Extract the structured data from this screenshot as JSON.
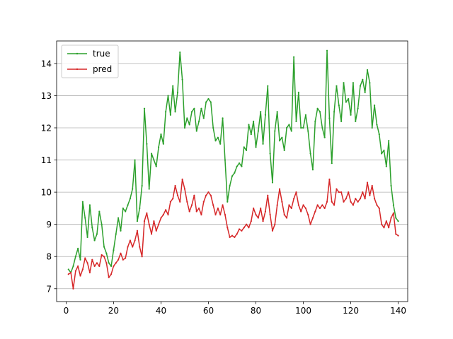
{
  "chart_data": {
    "type": "line",
    "xlim": [
      -4,
      144
    ],
    "ylim": [
      6.6,
      14.7
    ],
    "xticks": [
      0,
      20,
      40,
      60,
      80,
      100,
      120,
      140
    ],
    "yticks": [
      7,
      8,
      9,
      10,
      11,
      12,
      13,
      14
    ],
    "grid": "horizontal",
    "legend": "top-left",
    "series": [
      {
        "name": "true",
        "color": "#2ca02c",
        "points": [
          [
            1,
            7.6
          ],
          [
            2,
            7.5
          ],
          [
            3,
            7.7
          ],
          [
            4,
            8.0
          ],
          [
            5,
            8.25
          ],
          [
            6,
            7.9
          ],
          [
            7,
            9.7
          ],
          [
            8,
            9.2
          ],
          [
            9,
            8.6
          ],
          [
            10,
            9.6
          ],
          [
            11,
            8.9
          ],
          [
            12,
            8.5
          ],
          [
            13,
            8.7
          ],
          [
            14,
            9.4
          ],
          [
            15,
            9.0
          ],
          [
            16,
            8.3
          ],
          [
            17,
            8.1
          ],
          [
            18,
            7.8
          ],
          [
            19,
            7.7
          ],
          [
            20,
            8.2
          ],
          [
            21,
            8.7
          ],
          [
            22,
            9.2
          ],
          [
            23,
            8.8
          ],
          [
            24,
            9.5
          ],
          [
            25,
            9.4
          ],
          [
            26,
            9.6
          ],
          [
            27,
            9.8
          ],
          [
            28,
            10.1
          ],
          [
            29,
            11.0
          ],
          [
            30,
            9.1
          ],
          [
            31,
            9.5
          ],
          [
            32,
            10.2
          ],
          [
            33,
            12.6
          ],
          [
            34,
            11.5
          ],
          [
            35,
            10.1
          ],
          [
            36,
            11.2
          ],
          [
            37,
            11.0
          ],
          [
            38,
            10.8
          ],
          [
            39,
            11.4
          ],
          [
            40,
            11.8
          ],
          [
            41,
            11.5
          ],
          [
            42,
            12.5
          ],
          [
            43,
            13.0
          ],
          [
            44,
            12.4
          ],
          [
            45,
            13.3
          ],
          [
            46,
            12.5
          ],
          [
            47,
            13.1
          ],
          [
            48,
            14.35
          ],
          [
            49,
            13.5
          ],
          [
            50,
            12.0
          ],
          [
            51,
            12.3
          ],
          [
            52,
            12.1
          ],
          [
            53,
            12.5
          ],
          [
            54,
            12.6
          ],
          [
            55,
            11.9
          ],
          [
            56,
            12.2
          ],
          [
            57,
            12.6
          ],
          [
            58,
            12.3
          ],
          [
            59,
            12.8
          ],
          [
            60,
            12.9
          ],
          [
            61,
            12.8
          ],
          [
            62,
            12.0
          ],
          [
            63,
            11.6
          ],
          [
            64,
            11.7
          ],
          [
            65,
            11.5
          ],
          [
            66,
            12.3
          ],
          [
            67,
            11.0
          ],
          [
            68,
            9.7
          ],
          [
            69,
            10.2
          ],
          [
            70,
            10.5
          ],
          [
            71,
            10.6
          ],
          [
            72,
            10.8
          ],
          [
            73,
            10.9
          ],
          [
            74,
            10.8
          ],
          [
            75,
            11.4
          ],
          [
            76,
            11.3
          ],
          [
            77,
            12.1
          ],
          [
            78,
            11.8
          ],
          [
            79,
            12.2
          ],
          [
            80,
            11.4
          ],
          [
            81,
            11.9
          ],
          [
            82,
            12.5
          ],
          [
            83,
            11.5
          ],
          [
            84,
            12.4
          ],
          [
            85,
            13.3
          ],
          [
            86,
            11.2
          ],
          [
            87,
            10.3
          ],
          [
            88,
            11.9
          ],
          [
            89,
            12.5
          ],
          [
            90,
            11.6
          ],
          [
            91,
            11.7
          ],
          [
            92,
            11.3
          ],
          [
            93,
            12.0
          ],
          [
            94,
            12.1
          ],
          [
            95,
            11.9
          ],
          [
            96,
            14.2
          ],
          [
            97,
            12.2
          ],
          [
            98,
            13.1
          ],
          [
            99,
            12.0
          ],
          [
            100,
            12.0
          ],
          [
            101,
            12.4
          ],
          [
            102,
            11.9
          ],
          [
            103,
            11.2
          ],
          [
            104,
            10.7
          ],
          [
            105,
            12.2
          ],
          [
            106,
            12.6
          ],
          [
            107,
            12.5
          ],
          [
            108,
            12.0
          ],
          [
            109,
            11.7
          ],
          [
            110,
            14.4
          ],
          [
            111,
            12.3
          ],
          [
            112,
            10.9
          ],
          [
            113,
            12.5
          ],
          [
            114,
            13.3
          ],
          [
            115,
            12.7
          ],
          [
            116,
            12.2
          ],
          [
            117,
            13.4
          ],
          [
            118,
            12.8
          ],
          [
            119,
            12.9
          ],
          [
            120,
            12.4
          ],
          [
            121,
            13.4
          ],
          [
            122,
            12.2
          ],
          [
            123,
            12.6
          ],
          [
            124,
            13.3
          ],
          [
            125,
            13.5
          ],
          [
            126,
            13.1
          ],
          [
            127,
            13.8
          ],
          [
            128,
            13.4
          ],
          [
            129,
            12.0
          ],
          [
            130,
            12.7
          ],
          [
            131,
            12.1
          ],
          [
            132,
            11.8
          ],
          [
            133,
            11.2
          ],
          [
            134,
            11.3
          ],
          [
            135,
            10.8
          ],
          [
            136,
            11.6
          ],
          [
            137,
            10.2
          ],
          [
            138,
            9.6
          ],
          [
            139,
            9.2
          ],
          [
            140,
            9.1
          ]
        ]
      },
      {
        "name": "pred",
        "color": "#d62728",
        "points": [
          [
            1,
            7.45
          ],
          [
            2,
            7.5
          ],
          [
            3,
            7.0
          ],
          [
            4,
            7.55
          ],
          [
            5,
            7.7
          ],
          [
            6,
            7.4
          ],
          [
            7,
            7.6
          ],
          [
            8,
            7.95
          ],
          [
            9,
            7.8
          ],
          [
            10,
            7.5
          ],
          [
            11,
            7.9
          ],
          [
            12,
            7.7
          ],
          [
            13,
            7.8
          ],
          [
            14,
            7.7
          ],
          [
            15,
            8.05
          ],
          [
            16,
            8.0
          ],
          [
            17,
            7.8
          ],
          [
            18,
            7.35
          ],
          [
            19,
            7.45
          ],
          [
            20,
            7.7
          ],
          [
            21,
            7.8
          ],
          [
            22,
            7.9
          ],
          [
            23,
            8.1
          ],
          [
            24,
            7.9
          ],
          [
            25,
            7.95
          ],
          [
            26,
            8.3
          ],
          [
            27,
            8.5
          ],
          [
            28,
            8.3
          ],
          [
            29,
            8.5
          ],
          [
            30,
            8.8
          ],
          [
            31,
            8.3
          ],
          [
            32,
            8.0
          ],
          [
            33,
            9.1
          ],
          [
            34,
            9.35
          ],
          [
            35,
            9.0
          ],
          [
            36,
            8.7
          ],
          [
            37,
            9.1
          ],
          [
            38,
            8.8
          ],
          [
            39,
            9.0
          ],
          [
            40,
            9.2
          ],
          [
            41,
            9.3
          ],
          [
            42,
            9.45
          ],
          [
            43,
            9.3
          ],
          [
            44,
            9.7
          ],
          [
            45,
            9.8
          ],
          [
            46,
            10.2
          ],
          [
            47,
            9.9
          ],
          [
            48,
            9.7
          ],
          [
            49,
            10.4
          ],
          [
            50,
            10.1
          ],
          [
            51,
            9.7
          ],
          [
            52,
            9.4
          ],
          [
            53,
            9.6
          ],
          [
            54,
            9.9
          ],
          [
            55,
            9.4
          ],
          [
            56,
            9.5
          ],
          [
            57,
            9.3
          ],
          [
            58,
            9.7
          ],
          [
            59,
            9.9
          ],
          [
            60,
            10.0
          ],
          [
            61,
            9.9
          ],
          [
            62,
            9.6
          ],
          [
            63,
            9.3
          ],
          [
            64,
            9.5
          ],
          [
            65,
            9.3
          ],
          [
            66,
            9.6
          ],
          [
            67,
            9.3
          ],
          [
            68,
            8.9
          ],
          [
            69,
            8.6
          ],
          [
            70,
            8.65
          ],
          [
            71,
            8.6
          ],
          [
            72,
            8.7
          ],
          [
            73,
            8.85
          ],
          [
            74,
            8.8
          ],
          [
            75,
            8.9
          ],
          [
            76,
            9.0
          ],
          [
            77,
            8.9
          ],
          [
            78,
            9.1
          ],
          [
            79,
            9.5
          ],
          [
            80,
            9.3
          ],
          [
            81,
            9.2
          ],
          [
            82,
            9.5
          ],
          [
            83,
            9.1
          ],
          [
            84,
            9.4
          ],
          [
            85,
            9.9
          ],
          [
            86,
            9.3
          ],
          [
            87,
            8.8
          ],
          [
            88,
            9.0
          ],
          [
            89,
            9.6
          ],
          [
            90,
            10.1
          ],
          [
            91,
            9.7
          ],
          [
            92,
            9.3
          ],
          [
            93,
            9.2
          ],
          [
            94,
            9.6
          ],
          [
            95,
            9.5
          ],
          [
            96,
            9.8
          ],
          [
            97,
            10.0
          ],
          [
            98,
            9.6
          ],
          [
            99,
            9.4
          ],
          [
            100,
            9.6
          ],
          [
            101,
            9.5
          ],
          [
            102,
            9.3
          ],
          [
            103,
            9.0
          ],
          [
            104,
            9.2
          ],
          [
            105,
            9.4
          ],
          [
            106,
            9.6
          ],
          [
            107,
            9.5
          ],
          [
            108,
            9.6
          ],
          [
            109,
            9.5
          ],
          [
            110,
            9.7
          ],
          [
            111,
            10.4
          ],
          [
            112,
            9.7
          ],
          [
            113,
            9.6
          ],
          [
            114,
            10.1
          ],
          [
            115,
            10.0
          ],
          [
            116,
            10.0
          ],
          [
            117,
            9.7
          ],
          [
            118,
            9.8
          ],
          [
            119,
            10.0
          ],
          [
            120,
            9.7
          ],
          [
            121,
            9.6
          ],
          [
            122,
            9.8
          ],
          [
            123,
            9.7
          ],
          [
            124,
            9.8
          ],
          [
            125,
            10.0
          ],
          [
            126,
            9.8
          ],
          [
            127,
            10.3
          ],
          [
            128,
            9.9
          ],
          [
            129,
            10.2
          ],
          [
            130,
            9.8
          ],
          [
            131,
            9.6
          ],
          [
            132,
            9.5
          ],
          [
            133,
            9.0
          ],
          [
            134,
            8.9
          ],
          [
            135,
            9.1
          ],
          [
            136,
            8.9
          ],
          [
            137,
            9.2
          ],
          [
            138,
            9.35
          ],
          [
            139,
            8.7
          ],
          [
            140,
            8.65
          ]
        ]
      }
    ]
  }
}
